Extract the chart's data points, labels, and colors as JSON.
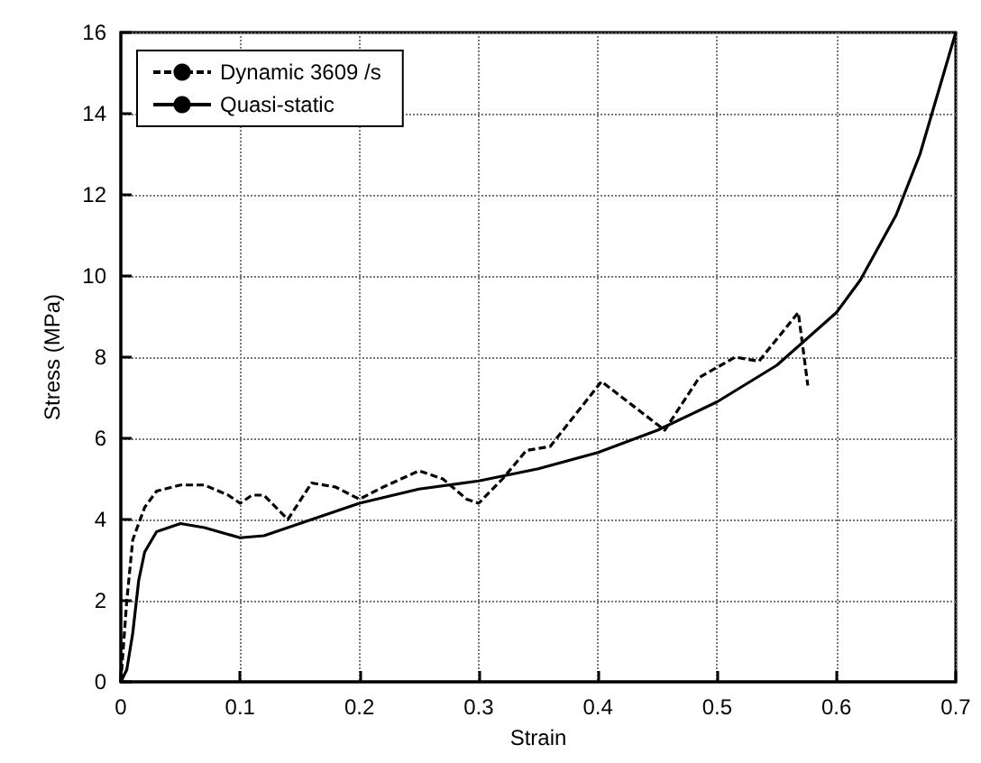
{
  "chart_data": {
    "type": "line",
    "xlabel": "Strain",
    "ylabel": "Stress (MPa)",
    "xlim": [
      0,
      0.7
    ],
    "xticks": [
      0,
      0.1,
      0.2,
      0.3,
      0.4,
      0.5,
      0.6,
      0.7
    ],
    "ylim": [
      0,
      16
    ],
    "yticks": [
      0,
      2,
      4,
      6,
      8,
      10,
      12,
      14,
      16
    ],
    "grid": true,
    "legend": "top left",
    "marker": "none",
    "series": [
      {
        "name": "Dynamic 3609 /s",
        "color": "#000000",
        "line_style": "dashed",
        "x": [
          0,
          0.005,
          0.01,
          0.02,
          0.03,
          0.05,
          0.07,
          0.09,
          0.1,
          0.11,
          0.12,
          0.13,
          0.14,
          0.16,
          0.18,
          0.2,
          0.22,
          0.25,
          0.27,
          0.29,
          0.3,
          0.32,
          0.34,
          0.36,
          0.403,
          0.456,
          0.485,
          0.515,
          0.535,
          0.568,
          0.576
        ],
        "values": [
          0,
          2,
          3.5,
          4.3,
          4.7,
          4.85,
          4.85,
          4.6,
          4.4,
          4.6,
          4.6,
          4.3,
          4.0,
          4.9,
          4.8,
          4.5,
          4.8,
          5.2,
          5.0,
          4.5,
          4.4,
          5.0,
          5.7,
          5.8,
          7.4,
          6.2,
          7.5,
          8.0,
          7.9,
          9.1,
          7.3
        ]
      },
      {
        "name": "Quasi-static",
        "color": "#000000",
        "line_style": "solid",
        "x": [
          0,
          0.005,
          0.01,
          0.015,
          0.02,
          0.03,
          0.05,
          0.07,
          0.1,
          0.12,
          0.15,
          0.2,
          0.25,
          0.3,
          0.35,
          0.4,
          0.45,
          0.5,
          0.55,
          0.6,
          0.62,
          0.65,
          0.67,
          0.7
        ],
        "values": [
          0,
          0.3,
          1.2,
          2.5,
          3.2,
          3.7,
          3.9,
          3.8,
          3.55,
          3.6,
          3.9,
          4.4,
          4.75,
          4.95,
          5.25,
          5.65,
          6.2,
          6.9,
          7.8,
          9.1,
          9.9,
          11.5,
          13,
          16
        ]
      }
    ]
  }
}
